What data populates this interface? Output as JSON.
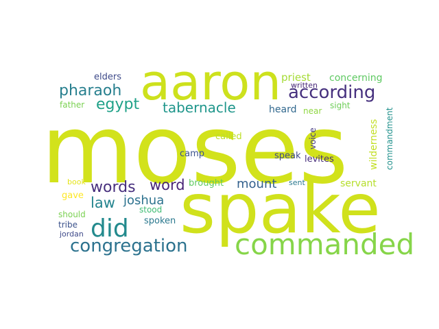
{
  "word_cloud": {
    "words": [
      {
        "key": "moses",
        "text": "moses",
        "color": "#d2e21b"
      },
      {
        "key": "spake",
        "text": "spake",
        "color": "#d0e11c"
      },
      {
        "key": "aaron",
        "text": "aaron",
        "color": "#cde11d"
      },
      {
        "key": "commanded",
        "text": "commanded",
        "color": "#86d549"
      },
      {
        "key": "did",
        "text": "did",
        "color": "#238a8d"
      },
      {
        "key": "congregation",
        "text": "congregation",
        "color": "#2c728e"
      },
      {
        "key": "according",
        "text": "according",
        "color": "#46307e"
      },
      {
        "key": "pharaoh",
        "text": "pharaoh",
        "color": "#277f8e"
      },
      {
        "key": "egypt",
        "text": "egypt",
        "color": "#1fa188"
      },
      {
        "key": "tabernacle",
        "text": "tabernacle",
        "color": "#1f968b"
      },
      {
        "key": "words",
        "text": "words",
        "color": "#472f7d"
      },
      {
        "key": "word",
        "text": "word",
        "color": "#482475"
      },
      {
        "key": "law",
        "text": "law",
        "color": "#25848e"
      },
      {
        "key": "joshua",
        "text": "joshua",
        "color": "#2c728e"
      },
      {
        "key": "mount",
        "text": "mount",
        "color": "#34618d"
      },
      {
        "key": "priest",
        "text": "priest",
        "color": "#a5db36"
      },
      {
        "key": "concerning",
        "text": "concerning",
        "color": "#5ec962"
      },
      {
        "key": "elders",
        "text": "elders",
        "color": "#3e4a89"
      },
      {
        "key": "written",
        "text": "written",
        "color": "#482878"
      },
      {
        "key": "father",
        "text": "father",
        "color": "#7ad151"
      },
      {
        "key": "heard",
        "text": "heard",
        "color": "#31688e"
      },
      {
        "key": "near",
        "text": "near",
        "color": "#90d743"
      },
      {
        "key": "sight",
        "text": "sight",
        "color": "#6ece58"
      },
      {
        "key": "voice",
        "text": "voice",
        "color": "#443a83"
      },
      {
        "key": "wilderness",
        "text": "wilderness",
        "color": "#c2df23"
      },
      {
        "key": "commandment",
        "text": "commandment",
        "color": "#21918c"
      },
      {
        "key": "called",
        "text": "called",
        "color": "#bddf26"
      },
      {
        "key": "camp",
        "text": "camp",
        "color": "#3b528b"
      },
      {
        "key": "speak",
        "text": "speak",
        "color": "#3e4989"
      },
      {
        "key": "levites",
        "text": "levites",
        "color": "#472d7b"
      },
      {
        "key": "brought",
        "text": "brought",
        "color": "#5ec962"
      },
      {
        "key": "servant",
        "text": "servant",
        "color": "#b5de2b"
      },
      {
        "key": "sent",
        "text": "sent",
        "color": "#2a788e"
      },
      {
        "key": "book",
        "text": "book",
        "color": "#e5e419"
      },
      {
        "key": "gave",
        "text": "gave",
        "color": "#fde725"
      },
      {
        "key": "stood",
        "text": "stood",
        "color": "#3fbc73"
      },
      {
        "key": "spoken",
        "text": "spoken",
        "color": "#2a788e"
      },
      {
        "key": "should",
        "text": "should",
        "color": "#7ad151"
      },
      {
        "key": "tribe",
        "text": "tribe",
        "color": "#3b528b"
      },
      {
        "key": "jordan",
        "text": "jordan",
        "color": "#3e4989"
      }
    ]
  }
}
